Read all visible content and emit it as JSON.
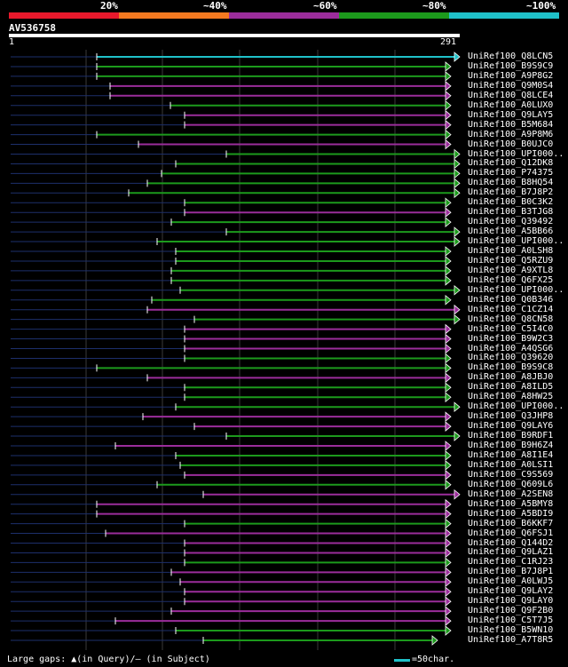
{
  "legend": {
    "labels": [
      "20%",
      "~40%",
      "~60%",
      "~80%",
      "~100%"
    ],
    "colors": [
      "#e8192c",
      "#f47920",
      "#9b2d9b",
      "#1c9a1c",
      "#1fc1c9"
    ]
  },
  "query": {
    "id": "AV536758",
    "start": "1",
    "end": "291"
  },
  "hits": [
    {
      "label": "UniRef100_Q8LCN5",
      "color": "cyan",
      "start": 109,
      "end": 518
    },
    {
      "label": "UniRef100_B9S9C9",
      "color": "green",
      "start": 109,
      "end": 508
    },
    {
      "label": "UniRef100_A9P8G2",
      "color": "green",
      "start": 109,
      "end": 508
    },
    {
      "label": "UniRef100_Q9M0S4",
      "color": "purple",
      "start": 124,
      "end": 508
    },
    {
      "label": "UniRef100_Q8LCE4",
      "color": "purple",
      "start": 124,
      "end": 508
    },
    {
      "label": "UniRef100_A0LUX0",
      "color": "green",
      "start": 192,
      "end": 508
    },
    {
      "label": "UniRef100_Q9LAY5",
      "color": "purple",
      "start": 208,
      "end": 508
    },
    {
      "label": "UniRef100_B5M684",
      "color": "purple",
      "start": 208,
      "end": 508
    },
    {
      "label": "UniRef100_A9P8M6",
      "color": "green",
      "start": 109,
      "end": 508
    },
    {
      "label": "UniRef100_B0UJC0",
      "color": "purple",
      "start": 156,
      "end": 508
    },
    {
      "label": "UniRef100_UPI000..",
      "color": "green",
      "start": 255,
      "end": 518
    },
    {
      "label": "UniRef100_Q12DK8",
      "color": "green",
      "start": 198,
      "end": 518
    },
    {
      "label": "UniRef100_P74375",
      "color": "green",
      "start": 182,
      "end": 518
    },
    {
      "label": "UniRef100_B8HQ54",
      "color": "green",
      "start": 166,
      "end": 518
    },
    {
      "label": "UniRef100_B7J8P2",
      "color": "green",
      "start": 145,
      "end": 518
    },
    {
      "label": "UniRef100_B0C3K2",
      "color": "green",
      "start": 208,
      "end": 508
    },
    {
      "label": "UniRef100_B3TJG8",
      "color": "purple",
      "start": 208,
      "end": 508
    },
    {
      "label": "UniRef100_Q39492",
      "color": "green",
      "start": 193,
      "end": 508
    },
    {
      "label": "UniRef100_A5BB66",
      "color": "green",
      "start": 255,
      "end": 518
    },
    {
      "label": "UniRef100_UPI000..",
      "color": "green",
      "start": 177,
      "end": 518
    },
    {
      "label": "UniRef100_A0LSH8",
      "color": "green",
      "start": 198,
      "end": 508
    },
    {
      "label": "UniRef100_Q5RZU9",
      "color": "green",
      "start": 198,
      "end": 508
    },
    {
      "label": "UniRef100_A9XTL8",
      "color": "green",
      "start": 193,
      "end": 508
    },
    {
      "label": "UniRef100_Q6FX25",
      "color": "green",
      "start": 193,
      "end": 508
    },
    {
      "label": "UniRef100_UPI000..",
      "color": "green",
      "start": 203,
      "end": 518
    },
    {
      "label": "UniRef100_Q0B346",
      "color": "green",
      "start": 171,
      "end": 508
    },
    {
      "label": "UniRef100_C1CZ14",
      "color": "purple",
      "start": 166,
      "end": 518
    },
    {
      "label": "UniRef100_Q8CN58",
      "color": "green",
      "start": 219,
      "end": 518
    },
    {
      "label": "UniRef100_C5I4C0",
      "color": "purple",
      "start": 208,
      "end": 508
    },
    {
      "label": "UniRef100_B9W2C3",
      "color": "purple",
      "start": 208,
      "end": 508
    },
    {
      "label": "UniRef100_A4QSG6",
      "color": "purple",
      "start": 208,
      "end": 508
    },
    {
      "label": "UniRef100_Q39620",
      "color": "green",
      "start": 208,
      "end": 508
    },
    {
      "label": "UniRef100_B9S9C8",
      "color": "green",
      "start": 109,
      "end": 508
    },
    {
      "label": "UniRef100_A8JBJ0",
      "color": "purple",
      "start": 166,
      "end": 508
    },
    {
      "label": "UniRef100_A8ILD5",
      "color": "green",
      "start": 208,
      "end": 508
    },
    {
      "label": "UniRef100_A8HW25",
      "color": "green",
      "start": 208,
      "end": 508
    },
    {
      "label": "UniRef100_UPI000..",
      "color": "green",
      "start": 198,
      "end": 518
    },
    {
      "label": "UniRef100_Q3JHP8",
      "color": "purple",
      "start": 161,
      "end": 508
    },
    {
      "label": "UniRef100_Q9LAY6",
      "color": "purple",
      "start": 219,
      "end": 508
    },
    {
      "label": "UniRef100_B9RDF1",
      "color": "green",
      "start": 255,
      "end": 518
    },
    {
      "label": "UniRef100_B9H6Z4",
      "color": "purple",
      "start": 130,
      "end": 508
    },
    {
      "label": "UniRef100_A8I1E4",
      "color": "green",
      "start": 198,
      "end": 508
    },
    {
      "label": "UniRef100_A0LSI1",
      "color": "green",
      "start": 203,
      "end": 508
    },
    {
      "label": "UniRef100_C9S569",
      "color": "purple",
      "start": 208,
      "end": 508
    },
    {
      "label": "UniRef100_Q609L6",
      "color": "green",
      "start": 177,
      "end": 508
    },
    {
      "label": "UniRef100_A2SEN8",
      "color": "purple",
      "start": 229,
      "end": 518
    },
    {
      "label": "UniRef100_A5BMY8",
      "color": "purple",
      "start": 109,
      "end": 508
    },
    {
      "label": "UniRef100_A5BDI9",
      "color": "purple",
      "start": 109,
      "end": 508
    },
    {
      "label": "UniRef100_B6KKF7",
      "color": "green",
      "start": 208,
      "end": 508
    },
    {
      "label": "UniRef100_Q6FSJ1",
      "color": "purple",
      "start": 119,
      "end": 508
    },
    {
      "label": "UniRef100_Q144D2",
      "color": "purple",
      "start": 208,
      "end": 508
    },
    {
      "label": "UniRef100_Q9LAZ1",
      "color": "purple",
      "start": 208,
      "end": 508
    },
    {
      "label": "UniRef100_C1RJ23",
      "color": "green",
      "start": 208,
      "end": 508
    },
    {
      "label": "UniRef100_B7J8P1",
      "color": "purple",
      "start": 193,
      "end": 508
    },
    {
      "label": "UniRef100_A0LWJ5",
      "color": "purple",
      "start": 203,
      "end": 508
    },
    {
      "label": "UniRef100_Q9LAY2",
      "color": "purple",
      "start": 208,
      "end": 508
    },
    {
      "label": "UniRef100_Q9LAY0",
      "color": "purple",
      "start": 208,
      "end": 508
    },
    {
      "label": "UniRef100_Q9F2B0",
      "color": "purple",
      "start": 193,
      "end": 508
    },
    {
      "label": "UniRef100_C5T7J5",
      "color": "purple",
      "start": 130,
      "end": 508
    },
    {
      "label": "UniRef100_B5WN10",
      "color": "green",
      "start": 198,
      "end": 508
    },
    {
      "label": "UniRef100_A7T8R5",
      "color": "green",
      "start": 229,
      "end": 493
    }
  ],
  "footer": {
    "text": "Large gaps: ▲(in Query)/— (in Subject)",
    "scale": "=50char."
  }
}
